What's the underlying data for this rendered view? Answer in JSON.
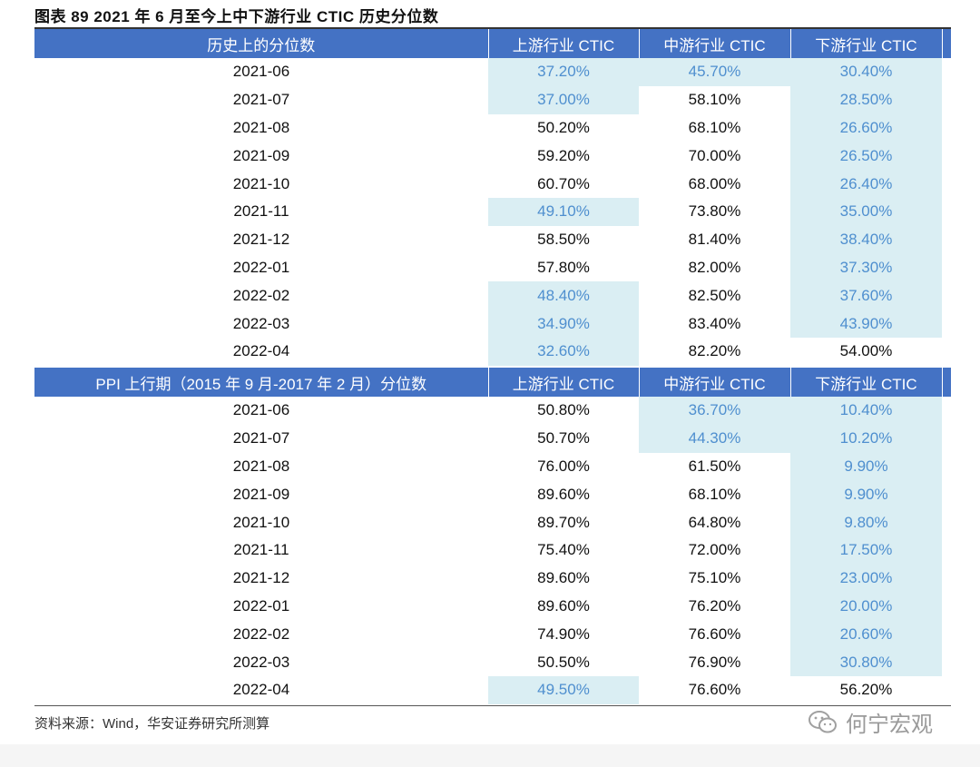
{
  "caption": "图表 89 2021 年 6 月至今上中下游行业 CTIC 历史分位数",
  "table1": {
    "headers": [
      "历史上的分位数",
      "上游行业 CTIC",
      "中游行业 CTIC",
      "下游行业 CTIC"
    ],
    "rows": [
      [
        "2021-06",
        "37.20%",
        "45.70%",
        "30.40%"
      ],
      [
        "2021-07",
        "37.00%",
        "58.10%",
        "28.50%"
      ],
      [
        "2021-08",
        "50.20%",
        "68.10%",
        "26.60%"
      ],
      [
        "2021-09",
        "59.20%",
        "70.00%",
        "26.50%"
      ],
      [
        "2021-10",
        "60.70%",
        "68.00%",
        "26.40%"
      ],
      [
        "2021-11",
        "49.10%",
        "73.80%",
        "35.00%"
      ],
      [
        "2021-12",
        "58.50%",
        "81.40%",
        "38.40%"
      ],
      [
        "2022-01",
        "57.80%",
        "82.00%",
        "37.30%"
      ],
      [
        "2022-02",
        "48.40%",
        "82.50%",
        "37.60%"
      ],
      [
        "2022-03",
        "34.90%",
        "83.40%",
        "43.90%"
      ],
      [
        "2022-04",
        "32.60%",
        "82.20%",
        "54.00%"
      ]
    ]
  },
  "table2": {
    "headers": [
      "PPI 上行期（2015 年 9 月-2017 年 2 月）分位数",
      "上游行业 CTIC",
      "中游行业 CTIC",
      "下游行业 CTIC"
    ],
    "rows": [
      [
        "2021-06",
        "50.80%",
        "36.70%",
        "10.40%"
      ],
      [
        "2021-07",
        "50.70%",
        "44.30%",
        "10.20%"
      ],
      [
        "2021-08",
        "76.00%",
        "61.50%",
        "9.90%"
      ],
      [
        "2021-09",
        "89.60%",
        "68.10%",
        "9.90%"
      ],
      [
        "2021-10",
        "89.70%",
        "64.80%",
        "9.80%"
      ],
      [
        "2021-11",
        "75.40%",
        "72.00%",
        "17.50%"
      ],
      [
        "2021-12",
        "89.60%",
        "75.10%",
        "23.00%"
      ],
      [
        "2022-01",
        "89.60%",
        "76.20%",
        "20.00%"
      ],
      [
        "2022-02",
        "74.90%",
        "76.60%",
        "20.60%"
      ],
      [
        "2022-03",
        "50.50%",
        "76.90%",
        "30.80%"
      ],
      [
        "2022-04",
        "49.50%",
        "76.60%",
        "56.20%"
      ]
    ]
  },
  "source": "资料来源：Wind，华安证券研究所测算",
  "watermark": "何宁宏观",
  "colors": {
    "header_bg": "#4472c4",
    "highlight_bg": "#daeef3",
    "highlight_text": "#4f8fcf"
  }
}
